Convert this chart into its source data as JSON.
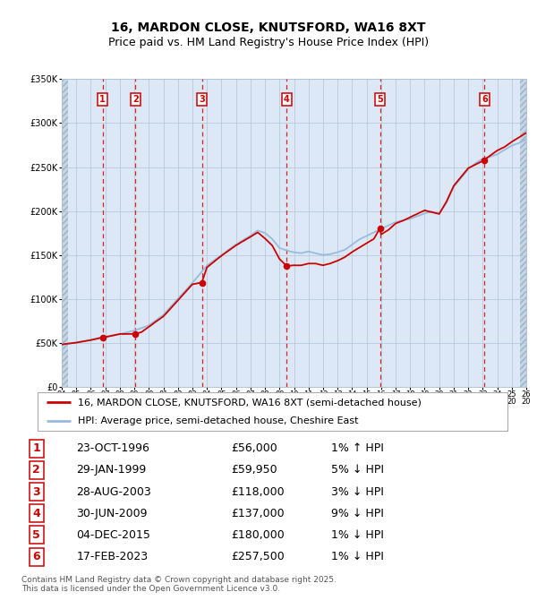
{
  "title": "16, MARDON CLOSE, KNUTSFORD, WA16 8XT",
  "subtitle": "Price paid vs. HM Land Registry's House Price Index (HPI)",
  "legend_line1": "16, MARDON CLOSE, KNUTSFORD, WA16 8XT (semi-detached house)",
  "legend_line2": "HPI: Average price, semi-detached house, Cheshire East",
  "footer": "Contains HM Land Registry data © Crown copyright and database right 2025.\nThis data is licensed under the Open Government Licence v3.0.",
  "sales": [
    {
      "num": 1,
      "date_dec": 1996.81,
      "price": 56000,
      "label": "23-OCT-1996",
      "price_str": "£56,000",
      "hpi_str": "1% ↑ HPI"
    },
    {
      "num": 2,
      "date_dec": 1999.08,
      "price": 59950,
      "label": "29-JAN-1999",
      "price_str": "£59,950",
      "hpi_str": "5% ↓ HPI"
    },
    {
      "num": 3,
      "date_dec": 2003.65,
      "price": 118000,
      "label": "28-AUG-2003",
      "price_str": "£118,000",
      "hpi_str": "3% ↓ HPI"
    },
    {
      "num": 4,
      "date_dec": 2009.49,
      "price": 137000,
      "label": "30-JUN-2009",
      "price_str": "£137,000",
      "hpi_str": "9% ↓ HPI"
    },
    {
      "num": 5,
      "date_dec": 2015.92,
      "price": 180000,
      "label": "04-DEC-2015",
      "price_str": "£180,000",
      "hpi_str": "1% ↓ HPI"
    },
    {
      "num": 6,
      "date_dec": 2023.12,
      "price": 257500,
      "label": "17-FEB-2023",
      "price_str": "£257,500",
      "hpi_str": "1% ↓ HPI"
    }
  ],
  "xmin": 1994.0,
  "xmax": 2026.0,
  "ymin": 0,
  "ymax": 350000,
  "yticks": [
    0,
    50000,
    100000,
    150000,
    200000,
    250000,
    300000,
    350000
  ],
  "ytick_labels": [
    "£0",
    "£50K",
    "£100K",
    "£150K",
    "£200K",
    "£250K",
    "£300K",
    "£350K"
  ],
  "background_color": "#dce8f5",
  "hatch_color": "#b8ccd8",
  "grid_color": "#b0c4d8",
  "sale_line_color": "#cc0000",
  "hpi_line_color": "#99bbdd",
  "sale_dot_color": "#cc0000",
  "vline_color": "#dd2222",
  "label_box_color": "#cc0000",
  "title_fontsize": 10,
  "subtitle_fontsize": 9,
  "axis_fontsize": 7,
  "legend_fontsize": 8,
  "table_fontsize": 9
}
